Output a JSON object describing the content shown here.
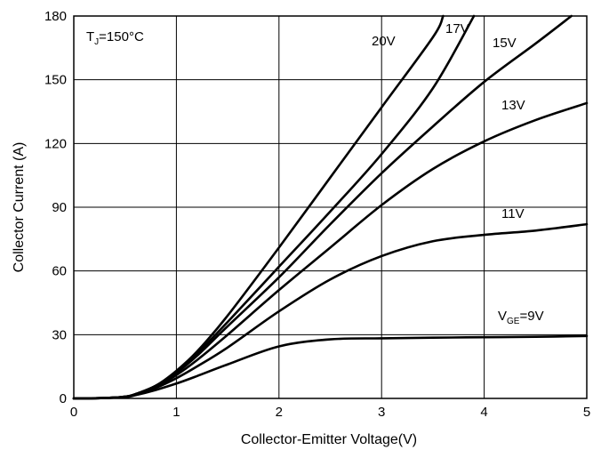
{
  "chart_data": {
    "type": "line",
    "title": "",
    "xlabel": "Collector-Emitter Voltage(V)",
    "ylabel": "Collector Current (A)",
    "xlim": [
      0,
      5
    ],
    "ylim": [
      0,
      180
    ],
    "xticks": [
      "0",
      "1",
      "2",
      "3",
      "4",
      "5"
    ],
    "yticks": [
      "0",
      "30",
      "60",
      "90",
      "120",
      "150",
      "180"
    ],
    "grid": true,
    "annotation": {
      "main": "T",
      "sub": "J",
      "suffix": "=150°C"
    },
    "series": [
      {
        "name": "20V",
        "label_main": "20V",
        "label_sub": "",
        "label_suffix": "",
        "x": [
          0,
          0.3,
          0.5,
          0.6,
          0.8,
          1.0,
          1.2,
          1.5,
          2.0,
          2.5,
          3.0,
          3.5,
          3.6
        ],
        "y": [
          0,
          0.2,
          0.8,
          2,
          6,
          13,
          22,
          39,
          71,
          104,
          137,
          170,
          180
        ]
      },
      {
        "name": "17V",
        "label_main": "17V",
        "label_sub": "",
        "label_suffix": "",
        "x": [
          0,
          0.3,
          0.5,
          0.6,
          0.8,
          1.0,
          1.2,
          1.5,
          2.0,
          2.5,
          3.0,
          3.5,
          3.9
        ],
        "y": [
          0,
          0.2,
          0.8,
          2,
          6,
          12.5,
          21,
          36,
          62,
          88,
          115,
          146,
          180
        ]
      },
      {
        "name": "15V",
        "label_main": "15V",
        "label_sub": "",
        "label_suffix": "",
        "x": [
          0,
          0.3,
          0.5,
          0.6,
          0.8,
          1.0,
          1.2,
          1.5,
          2.0,
          2.5,
          3.0,
          3.5,
          4.0,
          4.5,
          4.85
        ],
        "y": [
          0,
          0.2,
          0.8,
          2,
          5.8,
          12,
          20,
          34,
          57,
          82,
          106,
          128,
          149,
          167,
          180
        ]
      },
      {
        "name": "13V",
        "label_main": "13V",
        "label_sub": "",
        "label_suffix": "",
        "x": [
          0,
          0.3,
          0.5,
          0.6,
          0.8,
          1.0,
          1.2,
          1.5,
          2.0,
          2.5,
          3.0,
          3.5,
          4.0,
          4.5,
          5.0
        ],
        "y": [
          0,
          0.2,
          0.8,
          2,
          5.5,
          11,
          18,
          30,
          51,
          71,
          91,
          108,
          121,
          131,
          139
        ]
      },
      {
        "name": "11V",
        "label_main": "11V",
        "label_sub": "",
        "label_suffix": "",
        "x": [
          0,
          0.3,
          0.5,
          0.6,
          0.8,
          1.0,
          1.2,
          1.5,
          2.0,
          2.5,
          3.0,
          3.5,
          4.0,
          4.5,
          5.0
        ],
        "y": [
          0,
          0.2,
          0.7,
          1.8,
          5,
          9.5,
          15,
          24,
          41,
          56,
          67,
          74,
          77,
          79,
          82
        ]
      },
      {
        "name": "VGE=9V",
        "label_main": "V",
        "label_sub": "GE",
        "label_suffix": "=9V",
        "x": [
          0,
          0.3,
          0.5,
          0.6,
          0.8,
          1.0,
          1.2,
          1.5,
          2.0,
          2.5,
          3.0,
          3.5,
          4.0,
          4.5,
          5.0
        ],
        "y": [
          0,
          0.2,
          0.6,
          1.5,
          4,
          7,
          10.5,
          16,
          24.5,
          27.8,
          28.3,
          28.6,
          28.8,
          29,
          29.4
        ]
      }
    ]
  }
}
